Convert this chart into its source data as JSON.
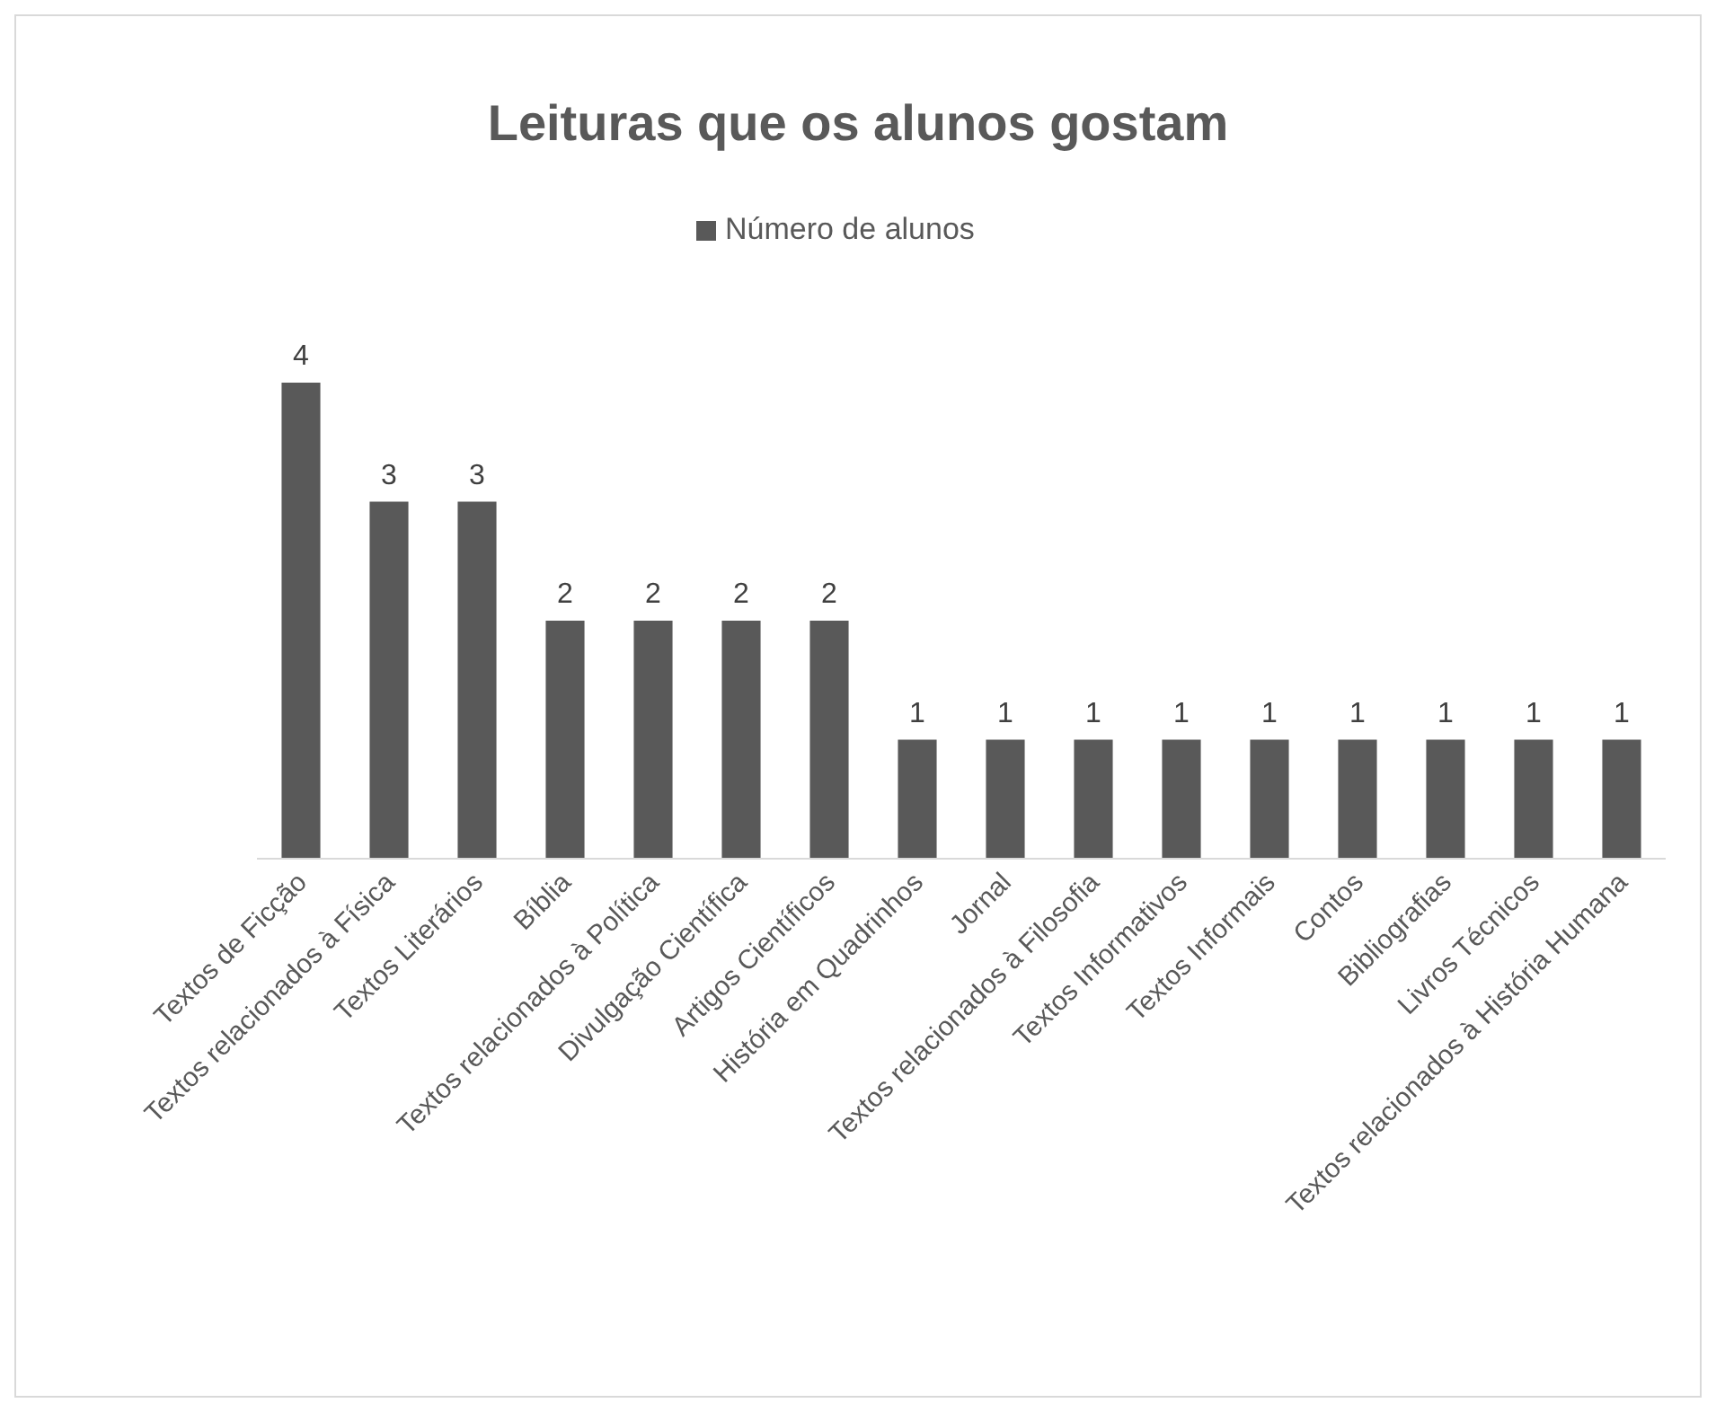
{
  "chart_data": {
    "type": "bar",
    "title": "Leituras que os alunos gostam",
    "categories": [
      "Textos de Ficção",
      "Textos relacionados à Física",
      "Textos Literários",
      "Bíblia",
      "Textos relacionados à Política",
      "Divulgação Científica",
      "Artigos Científicos",
      "História em Quadrinhos",
      "Jornal",
      "Textos relacionados à Filosofia",
      "Textos Informativos",
      "Textos Informais",
      "Contos",
      "Bibliografias",
      "Livros Técnicos",
      "Textos relacionados à História Humana"
    ],
    "series": [
      {
        "name": "Número de alunos",
        "color": "#595959",
        "values": [
          4,
          3,
          3,
          2,
          2,
          2,
          2,
          1,
          1,
          1,
          1,
          1,
          1,
          1,
          1,
          1
        ]
      }
    ],
    "data_labels": true,
    "legend": "top"
  }
}
